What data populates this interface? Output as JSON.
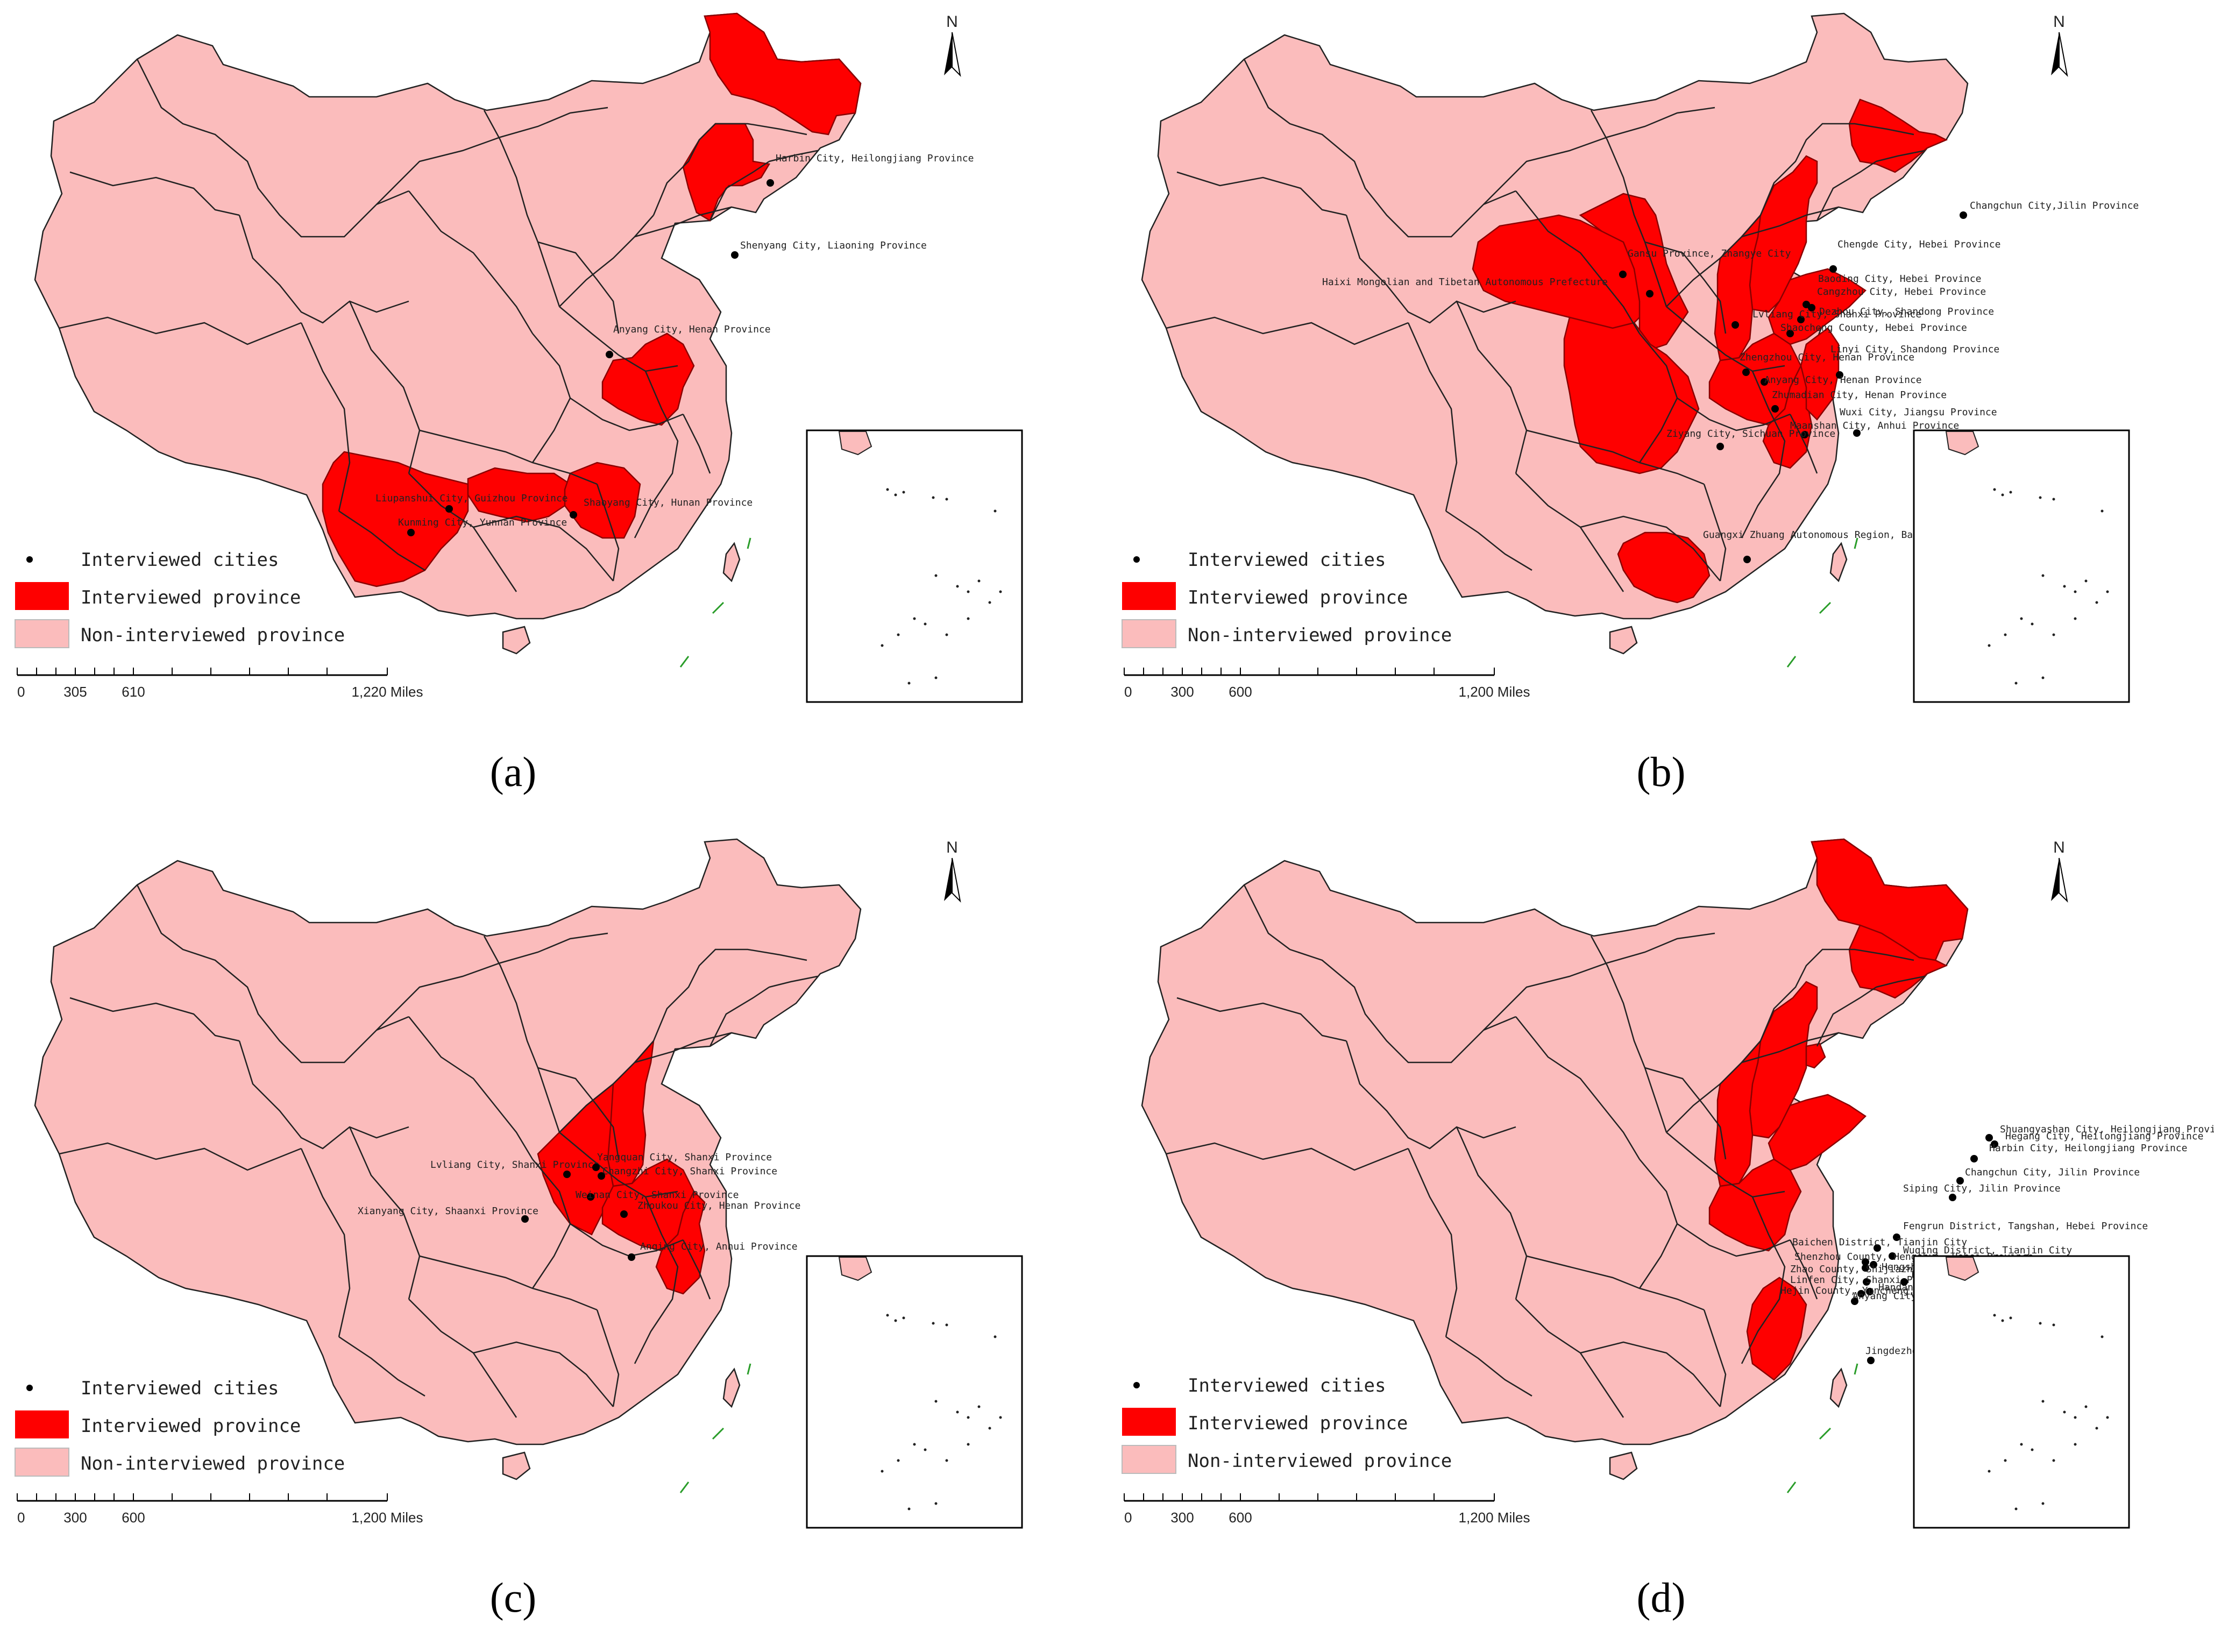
{
  "panels": [
    {
      "id": "a",
      "caption": "(a)",
      "highlighted": [
        "heilongjiang",
        "liaoning",
        "henan",
        "yunnan",
        "guizhou",
        "hunan"
      ],
      "cities": [
        {
          "label": "Harbin City, Heilongjiang Province"
        },
        {
          "label": "Shenyang City, Liaoning Province"
        },
        {
          "label": "Anyang City, Henan Province"
        },
        {
          "label": "Liupanshui City, Guizhou Province"
        },
        {
          "label": "Kunming City, Yunnan Province"
        },
        {
          "label": "Shaoyang City, Hunan Province"
        }
      ],
      "scale": {
        "ticks": [
          "0",
          "305",
          "610",
          "1,220 Miles"
        ]
      }
    },
    {
      "id": "b",
      "caption": "(b)",
      "highlighted": [
        "jilin",
        "hebei",
        "shandong",
        "henan",
        "anhui",
        "jiangsu",
        "qinghai",
        "gansu",
        "sichuan",
        "guangxi",
        "shanxi"
      ],
      "cities": [
        {
          "label": "Changchun City,Jilin Province"
        },
        {
          "label": "Gansu Province, Zhangye City"
        },
        {
          "label": "Haixi Mongolian and Tibetan Autonomous Prefecture"
        },
        {
          "label": "Chengde City, Hebei Province"
        },
        {
          "label": "Baoding City, Hebei Province"
        },
        {
          "label": "Cangzhou City, Hebei Province"
        },
        {
          "label": "Dezhou City, Shandong Province"
        },
        {
          "label": "Lvliang City, Shanxi Province"
        },
        {
          "label": "Shaocheng County, Hebei Province"
        },
        {
          "label": "Linyi City, Shandong Province"
        },
        {
          "label": "Zhengzhou City, Henan Province"
        },
        {
          "label": "Anyang City, Henan Province"
        },
        {
          "label": "Zhumadian City, Henan Province"
        },
        {
          "label": "Wuxi City, Jiangsu Province"
        },
        {
          "label": "Maanshan City, Anhui Province"
        },
        {
          "label": "Ziyang City, Sichuan Province"
        },
        {
          "label": "Guangxi Zhuang Autonomous Region, Baise City"
        }
      ],
      "scale": {
        "ticks": [
          "0",
          "300",
          "600",
          "1,200 Miles"
        ]
      }
    },
    {
      "id": "c",
      "caption": "(c)",
      "highlighted": [
        "shanxi",
        "shaanxi",
        "henan",
        "anhui"
      ],
      "cities": [
        {
          "label": "Lvliang City, Shanxi Province"
        },
        {
          "label": "Yangquan City, Shanxi Province"
        },
        {
          "label": "Changzhi City, Shanxi Province"
        },
        {
          "label": "Weinan City, Shanxi Province"
        },
        {
          "label": "Zhoukou City, Henan Province"
        },
        {
          "label": "Xianyang City, Shaanxi Province"
        },
        {
          "label": "Anqing City, Anhui Province"
        }
      ],
      "scale": {
        "ticks": [
          "0",
          "300",
          "600",
          "1,200 Miles"
        ]
      }
    },
    {
      "id": "d",
      "caption": "(d)",
      "highlighted": [
        "heilongjiang",
        "jilin",
        "hebei",
        "tianjin",
        "shanxi",
        "henan",
        "shandong",
        "jiangxi"
      ],
      "cities": [
        {
          "label": "Shuangyashan City, Heilongjiang Province"
        },
        {
          "label": "Hegang City, Heilongjiang Province"
        },
        {
          "label": "Harbin City, Heilongjiang Province"
        },
        {
          "label": "Changchun City, Jilin Province"
        },
        {
          "label": "Siping City, Jilin Province"
        },
        {
          "label": "Fengrun District, Tangshan, Hebei Province"
        },
        {
          "label": "Baichen District, Tianjin City"
        },
        {
          "label": "Wuqing District, Tianjin City"
        },
        {
          "label": "Shenzhou County, Hengshui, Hebei Province"
        },
        {
          "label": "Hengshui City, Hebei Province"
        },
        {
          "label": "Zhao County, Shijiazhuang, Hebei Province"
        },
        {
          "label": "Linyi City, Shandong Province"
        },
        {
          "label": "Linfen City, Shanxi Province"
        },
        {
          "label": "Handan City, Hebei Province"
        },
        {
          "label": "Hejin County, Yuncheng, Shanxi Province"
        },
        {
          "label": "Anyang City, Henan Province"
        },
        {
          "label": "Jingdezhen City, Jiangxi Province"
        }
      ],
      "scale": {
        "ticks": [
          "0",
          "300",
          "600",
          "1,200 Miles"
        ]
      }
    }
  ],
  "legend": {
    "cities": "Interviewed cities",
    "interviewed": "Interviewed province",
    "non_interviewed": "Non-interviewed province"
  },
  "north_label": "N",
  "colors": {
    "interviewed": "#fe0000",
    "non_interviewed": "#fbbcbc",
    "dot": "#000000"
  }
}
